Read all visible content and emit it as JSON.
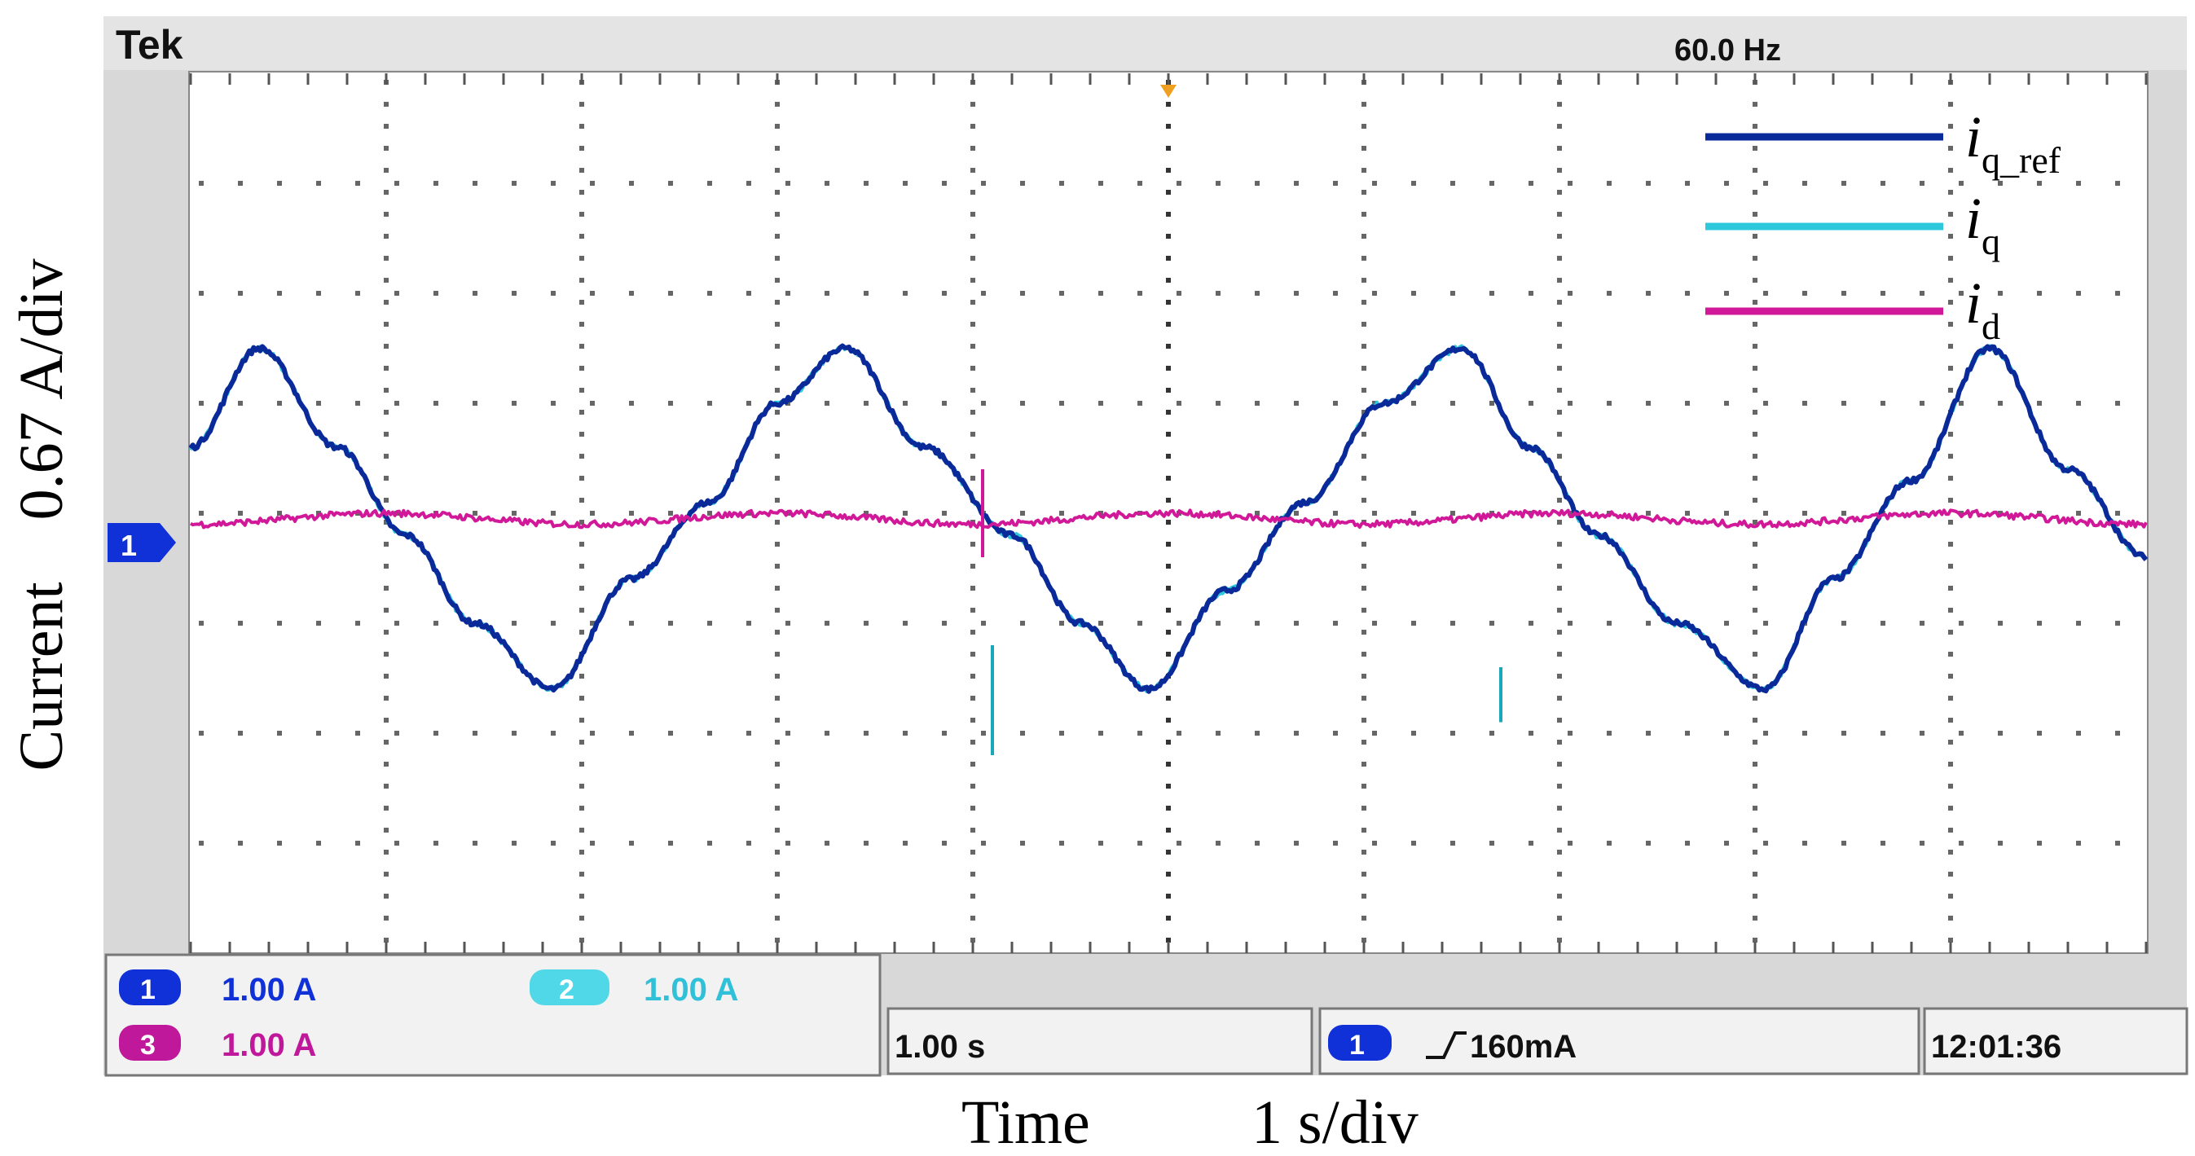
{
  "scope": {
    "brand": "Tek",
    "frequency": "60.0 Hz",
    "ground_marker": "1",
    "colors": {
      "iq_ref": "#0a2a9a",
      "iq": "#2ec8dc",
      "id": "#d01898",
      "ch1_badge": "#1030d8",
      "ch2_badge": "#50d8e8",
      "ch3_badge": "#c0189a",
      "grid_dots": "#666666",
      "screen_bg": "#ffffff",
      "frame": "#d8d8d8"
    }
  },
  "channels": [
    {
      "badge": "1",
      "scale": "1.00 A"
    },
    {
      "badge": "2",
      "scale": "1.00 A"
    },
    {
      "badge": "3",
      "scale": "1.00 A"
    }
  ],
  "timebase": "1.00 s",
  "trigger": {
    "badge": "1",
    "level": "160mA"
  },
  "clock": "12:01:36",
  "axes": {
    "ylabel": "Current    0.67 A/div",
    "xlabel_left": "Time",
    "xlabel_right": "1 s/div"
  },
  "legend": [
    {
      "main": "i",
      "sub": "q_ref"
    },
    {
      "main": "i",
      "sub": "q"
    },
    {
      "main": "i",
      "sub": "d"
    }
  ],
  "chart_data": {
    "type": "line",
    "x_unit_per_div": "1 s",
    "y_unit_per_div": "0.67 A",
    "xlim_div": [
      0,
      10
    ],
    "ylim_div": [
      -4,
      4
    ],
    "grid": true,
    "legend_position": "top-right",
    "series": [
      {
        "name": "iq_ref",
        "x": [
          0,
          0.35,
          0.75,
          1.1,
          1.45,
          1.85,
          2.25,
          2.65,
          3.0,
          3.35,
          3.75,
          4.2,
          4.55,
          4.9,
          5.3,
          5.7,
          6.1,
          6.5,
          6.85,
          7.2,
          7.6,
          8.05,
          8.4,
          8.8,
          9.2,
          9.6,
          10.0
        ],
        "y": [
          0.6,
          1.5,
          0.6,
          -0.2,
          -1.0,
          -1.6,
          -0.6,
          0.1,
          1.0,
          1.5,
          0.6,
          -0.2,
          -1.0,
          -1.6,
          -0.7,
          0.1,
          1.0,
          1.5,
          0.6,
          -0.2,
          -1.0,
          -1.6,
          -0.6,
          0.3,
          1.5,
          0.4,
          -0.4
        ]
      },
      {
        "name": "iq",
        "x": [
          0,
          0.35,
          0.75,
          1.1,
          1.45,
          1.85,
          2.25,
          2.65,
          3.0,
          3.35,
          3.75,
          4.2,
          4.55,
          4.9,
          5.3,
          5.7,
          6.1,
          6.5,
          6.85,
          7.2,
          7.6,
          8.05,
          8.4,
          8.8,
          9.2,
          9.6,
          10.0
        ],
        "y": [
          0.6,
          1.5,
          0.6,
          -0.2,
          -1.0,
          -1.6,
          -0.6,
          0.1,
          1.0,
          1.5,
          0.6,
          -0.2,
          -1.0,
          -1.6,
          -0.7,
          0.1,
          1.0,
          1.5,
          0.6,
          -0.2,
          -1.0,
          -1.6,
          -0.6,
          0.3,
          1.5,
          0.4,
          -0.4
        ]
      },
      {
        "name": "id",
        "x": [
          0,
          1.0,
          2.0,
          3.0,
          4.0,
          5.0,
          6.0,
          7.0,
          8.0,
          9.0,
          10.0
        ],
        "y": [
          -0.1,
          0.0,
          -0.1,
          0.0,
          -0.1,
          0.0,
          -0.1,
          0.0,
          -0.1,
          0.0,
          -0.1
        ]
      }
    ],
    "spikes": [
      {
        "series": "iq",
        "x": 4.1,
        "y_from": -1.2,
        "y_to": -2.2
      },
      {
        "series": "iq",
        "x": 6.7,
        "y_from": -1.4,
        "y_to": -1.9
      },
      {
        "series": "id",
        "x": 4.05,
        "y_from": 0.4,
        "y_to": -0.4
      }
    ]
  }
}
